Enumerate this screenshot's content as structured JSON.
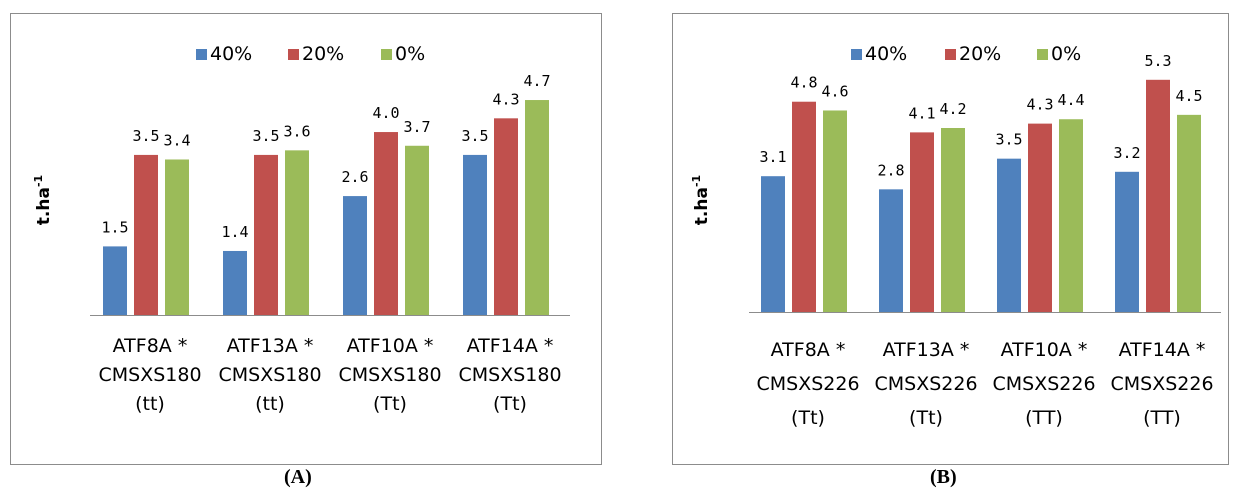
{
  "chart_data": [
    {
      "type": "bar",
      "panel_label": "(A)",
      "ylabel": "t.ha",
      "ylabel_superscript": "-1",
      "ylim": [
        0,
        6.1
      ],
      "legend_position": "top",
      "grid": false,
      "categories": [
        [
          "ATF8A *",
          "CMSXS180",
          "(tt)"
        ],
        [
          "ATF13A *",
          "CMSXS180",
          "(tt)"
        ],
        [
          "ATF10A *",
          "CMSXS180",
          "(Tt)"
        ],
        [
          "ATF14A *",
          "CMSXS180",
          "(Tt)"
        ]
      ],
      "series": [
        {
          "name": "40%",
          "color": "#4f81bd",
          "values": [
            1.5,
            1.4,
            2.6,
            3.5
          ],
          "labels": [
            "1.5",
            "1.4",
            "2.6",
            "3.5"
          ]
        },
        {
          "name": "20%",
          "color": "#c0504d",
          "values": [
            3.5,
            3.5,
            4.0,
            4.3
          ],
          "labels": [
            "3.5",
            "3.5",
            "4.0",
            "4.3"
          ]
        },
        {
          "name": "0%",
          "color": "#9bbb59",
          "values": [
            3.4,
            3.6,
            3.7,
            4.7
          ],
          "labels": [
            "3.4",
            "3.6",
            "3.7",
            "4.7"
          ]
        }
      ]
    },
    {
      "type": "bar",
      "panel_label": "(B)",
      "ylabel": "t.ha",
      "ylabel_superscript": "-1",
      "ylim": [
        0,
        6.3
      ],
      "legend_position": "top",
      "grid": false,
      "categories": [
        [
          "ATF8A *",
          "CMSXS226",
          "(Tt)"
        ],
        [
          "ATF13A *",
          "CMSXS226",
          "(Tt)"
        ],
        [
          "ATF10A *",
          "CMSXS226",
          "(TT)"
        ],
        [
          "ATF14A *",
          "CMSXS226",
          "(TT)"
        ]
      ],
      "series": [
        {
          "name": "40%",
          "color": "#4f81bd",
          "values": [
            3.1,
            2.8,
            3.5,
            3.2
          ],
          "labels": [
            "3.1",
            "2.8",
            "3.5",
            "3.2"
          ]
        },
        {
          "name": "20%",
          "color": "#c0504d",
          "values": [
            4.8,
            4.1,
            4.3,
            5.3
          ],
          "labels": [
            "4.8",
            "4.1",
            "4.3",
            "5.3"
          ]
        },
        {
          "name": "0%",
          "color": "#9bbb59",
          "values": [
            4.6,
            4.2,
            4.4,
            4.5
          ],
          "labels": [
            "4.6",
            "4.2",
            "4.4",
            "4.5"
          ]
        }
      ]
    }
  ]
}
